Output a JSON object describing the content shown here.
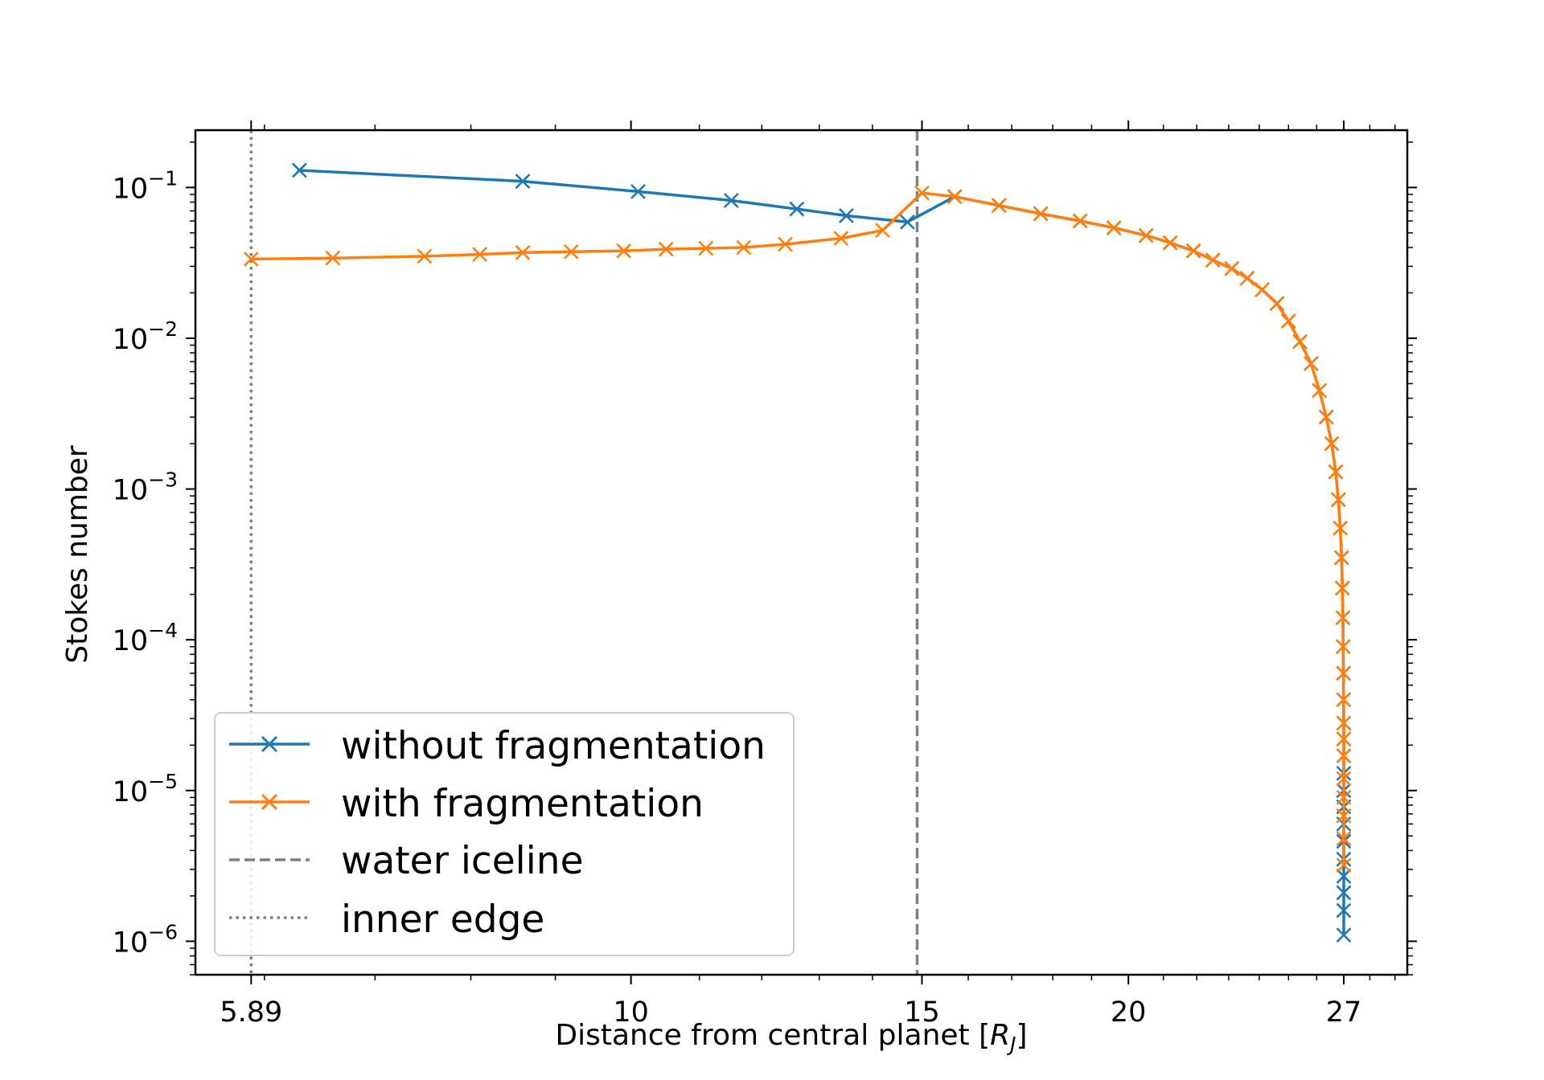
{
  "chart_data": {
    "type": "line",
    "title": "",
    "xlabel": "Distance from central planet [R_J]",
    "xlabel_main": "Distance from central planet [",
    "xlabel_math": "R",
    "xlabel_sub": "J",
    "xlabel_close": "]",
    "ylabel": "Stokes number",
    "xscale": "log",
    "yscale": "log",
    "xlim": [
      5.45,
      29.5
    ],
    "ylim": [
      6e-07,
      0.24
    ],
    "x_ticks": [
      {
        "value": 5.89,
        "label": "5.89"
      },
      {
        "value": 10,
        "label": "10"
      },
      {
        "value": 15,
        "label": "15"
      },
      {
        "value": 20,
        "label": "20"
      },
      {
        "value": 27,
        "label": "27"
      }
    ],
    "y_ticks": [
      {
        "value": 0.1,
        "base": "10",
        "exp": "−1"
      },
      {
        "value": 0.01,
        "base": "10",
        "exp": "−2"
      },
      {
        "value": 0.001,
        "base": "10",
        "exp": "−3"
      },
      {
        "value": 0.0001,
        "base": "10",
        "exp": "−4"
      },
      {
        "value": 1e-05,
        "base": "10",
        "exp": "−5"
      },
      {
        "value": 1e-06,
        "base": "10",
        "exp": "−6"
      }
    ],
    "legend_position": "lower left",
    "grid": false,
    "series": [
      {
        "name": "without fragmentation",
        "color": "#1f77b4",
        "marker": "x",
        "x": [
          6.3,
          8.6,
          10.1,
          11.5,
          12.6,
          13.5,
          14.7,
          15.7,
          16.7,
          17.7,
          18.7,
          19.6,
          20.5,
          21.2,
          21.9,
          22.5,
          23.1,
          23.6,
          24.1,
          24.6,
          25.0,
          25.4,
          25.8,
          26.1,
          26.35,
          26.55,
          26.7,
          26.8,
          26.87,
          26.92,
          26.95,
          26.97,
          26.98,
          26.99,
          26.995,
          27.0,
          27.0,
          27.0,
          27.0,
          27.0,
          27.0,
          27.0,
          27.0,
          27.0,
          27.0,
          27.0,
          27.0,
          27.0
        ],
        "y": [
          0.13,
          0.11,
          0.094,
          0.082,
          0.072,
          0.065,
          0.059,
          0.087,
          0.076,
          0.067,
          0.06,
          0.054,
          0.048,
          0.043,
          0.038,
          0.033,
          0.029,
          0.025,
          0.021,
          0.017,
          0.013,
          0.0095,
          0.0068,
          0.0045,
          0.003,
          0.002,
          0.0013,
          0.00085,
          0.00055,
          0.00035,
          0.00022,
          0.00014,
          9e-05,
          6e-05,
          4e-05,
          2.8e-05,
          2.2e-05,
          1.7e-05,
          1.3e-05,
          1e-05,
          7.8e-06,
          6e-06,
          4.6e-06,
          3.5e-06,
          2.7e-06,
          2.1e-06,
          1.6e-06,
          1.1e-06
        ]
      },
      {
        "name": "with fragmentation",
        "color": "#ff7f0e",
        "marker": "x",
        "x": [
          5.89,
          6.6,
          7.5,
          8.1,
          8.6,
          9.2,
          9.9,
          10.5,
          11.1,
          11.7,
          12.4,
          13.4,
          14.2,
          15.0,
          15.7,
          16.7,
          17.7,
          18.7,
          19.6,
          20.5,
          21.2,
          21.9,
          22.5,
          23.1,
          23.6,
          24.1,
          24.6,
          25.0,
          25.4,
          25.8,
          26.1,
          26.35,
          26.55,
          26.7,
          26.8,
          26.87,
          26.92,
          26.95,
          26.97,
          26.98,
          26.99,
          26.995,
          27.0,
          27.0,
          27.0,
          27.0,
          27.0,
          27.0,
          27.0,
          27.0
        ],
        "y": [
          0.0335,
          0.034,
          0.035,
          0.036,
          0.037,
          0.0375,
          0.038,
          0.039,
          0.0395,
          0.04,
          0.042,
          0.046,
          0.052,
          0.092,
          0.087,
          0.076,
          0.067,
          0.06,
          0.054,
          0.048,
          0.043,
          0.038,
          0.033,
          0.029,
          0.025,
          0.021,
          0.017,
          0.013,
          0.0095,
          0.0068,
          0.0045,
          0.003,
          0.002,
          0.0013,
          0.00085,
          0.00055,
          0.00035,
          0.00022,
          0.00014,
          9e-05,
          6e-05,
          4e-05,
          2.8e-05,
          2.2e-05,
          1.7e-05,
          1.2e-05,
          9e-06,
          6.8e-06,
          4.8e-06,
          3.2e-06
        ]
      }
    ],
    "reference_lines": [
      {
        "name": "water iceline",
        "x": 14.9,
        "color": "#7f7f7f",
        "style": "dashed"
      },
      {
        "name": "inner edge",
        "x": 5.89,
        "color": "#7f7f7f",
        "style": "dotted"
      }
    ]
  }
}
